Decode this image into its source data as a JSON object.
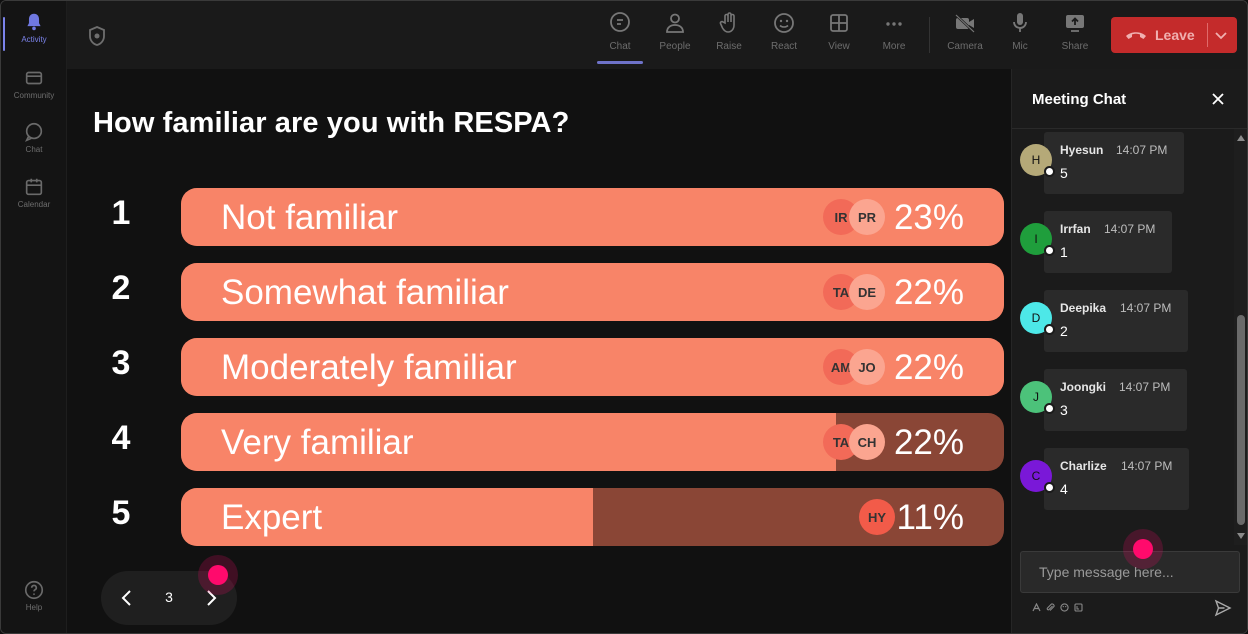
{
  "rail": {
    "items": [
      {
        "label": "Activity",
        "icon": "bell-icon"
      },
      {
        "label": "Community",
        "icon": "community-icon"
      },
      {
        "label": "Chat",
        "icon": "chat-icon"
      },
      {
        "label": "Calendar",
        "icon": "calendar-icon"
      }
    ],
    "help_label": "Help"
  },
  "toolbar": {
    "chat_label": "Chat",
    "people_label": "People",
    "raise_label": "Raise",
    "react_label": "React",
    "view_label": "View",
    "more_label": "More",
    "camera_label": "Camera",
    "mic_label": "Mic",
    "share_label": "Share",
    "leave_label": "Leave"
  },
  "poll": {
    "question": "How familiar are you with RESPA?",
    "options": [
      {
        "number": "1",
        "label": "Not familiar",
        "percent": "23%",
        "fill": 1.0,
        "avatars": [
          "IR",
          "PR"
        ]
      },
      {
        "number": "2",
        "label": "Somewhat familiar",
        "percent": "22%",
        "fill": 1.0,
        "avatars": [
          "TA",
          "DE"
        ]
      },
      {
        "number": "3",
        "label": "Moderately familiar",
        "percent": "22%",
        "fill": 1.0,
        "avatars": [
          "AM",
          "JO"
        ]
      },
      {
        "number": "4",
        "label": "Very familiar",
        "percent": "22%",
        "fill": 0.796,
        "avatars": [
          "TA",
          "CH"
        ]
      },
      {
        "number": "5",
        "label": "Expert",
        "percent": "11%",
        "fill": 0.5,
        "avatars": [
          "HY"
        ]
      }
    ],
    "page": "3",
    "accent_fill": "#f88468",
    "track_color": "#8a4636"
  },
  "chat": {
    "title": "Meeting Chat",
    "messages": [
      {
        "initial": "H",
        "name": "Hyesun",
        "time": "14:07 PM",
        "body": "5",
        "avatar_color": "#b5a978"
      },
      {
        "initial": "I",
        "name": "Irrfan",
        "time": "14:07 PM",
        "body": "1",
        "avatar_color": "#1f9e3c"
      },
      {
        "initial": "D",
        "name": "Deepika",
        "time": "14:07 PM",
        "body": "2",
        "avatar_color": "#4de8e8"
      },
      {
        "initial": "J",
        "name": "Joongki",
        "time": "14:07 PM",
        "body": "3",
        "avatar_color": "#4cc27a"
      },
      {
        "initial": "C",
        "name": "Charlize",
        "time": "14:07 PM",
        "body": "4",
        "avatar_color": "#7a18d8"
      }
    ],
    "input_placeholder": "Type message here..."
  }
}
